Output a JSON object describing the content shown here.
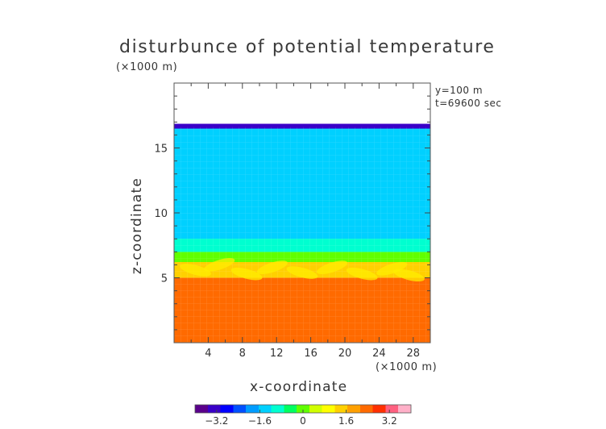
{
  "chart_data": {
    "type": "heatmap",
    "title": "disturbunce of potential temperature",
    "xlabel": "x-coordinate",
    "ylabel": "z-coordinate",
    "x_unit": "(×1000 m)",
    "y_unit": "(×1000 m)",
    "annotations": [
      "y=100 m",
      "t=69600 sec"
    ],
    "xlim": [
      0,
      30
    ],
    "ylim": [
      0,
      20
    ],
    "x_ticks": [
      4,
      8,
      12,
      16,
      20,
      24,
      28
    ],
    "y_ticks": [
      5,
      10,
      15
    ],
    "colorbar": {
      "ticks": [
        "−3.2",
        "−1.6",
        "0",
        "1.6",
        "3.2"
      ],
      "range": [
        -4,
        4
      ],
      "colors": [
        "#5a008c",
        "#3a00c8",
        "#0000ff",
        "#0050ff",
        "#009cff",
        "#00d0ff",
        "#00ffd0",
        "#00ff60",
        "#60ff00",
        "#d0ff00",
        "#ffff00",
        "#ffd000",
        "#ffa000",
        "#ff6a00",
        "#ff3000",
        "#ff6080",
        "#ffb0c8"
      ]
    },
    "field_layers": [
      {
        "z": [
          0,
          5
        ],
        "value": 2.4
      },
      {
        "z": [
          5,
          6.2
        ],
        "value": 1.2
      },
      {
        "z": [
          6.2,
          7
        ],
        "value": 0.2
      },
      {
        "z": [
          7,
          8
        ],
        "value": -0.9
      },
      {
        "z": [
          8,
          16.5
        ],
        "value": -1.5
      },
      {
        "z": [
          16.5,
          16.8
        ],
        "value": -3.2
      }
    ],
    "blank_above_z": 16.8
  }
}
